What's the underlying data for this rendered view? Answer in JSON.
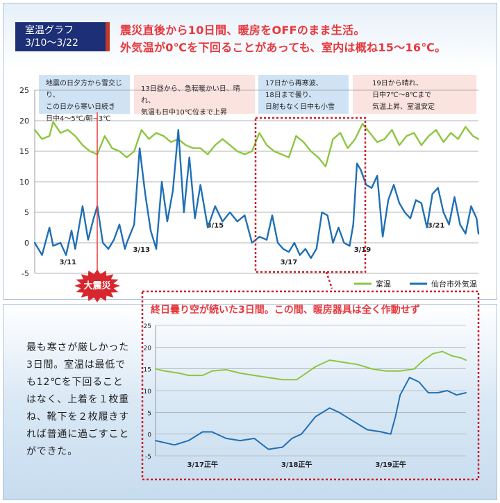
{
  "title_box": {
    "line1": "室温グラフ",
    "line2": "3/10〜3/22"
  },
  "headline": {
    "line1": "震災直後から10日間、暖房をOFFのまま生活。",
    "line2": "外気温が0℃を下回ることがあっても、室内は概ね15〜16℃。"
  },
  "annotations": [
    {
      "lines": [
        "地震の日夕方から雪交じり、",
        "この日から寒い日続き",
        "日中4〜5℃/朝−3℃"
      ],
      "style": "blue"
    },
    {
      "lines": [
        "13日昼から、急転暖かい日、晴れ、",
        "気温も日中10℃位まで上昇"
      ],
      "style": "pink"
    },
    {
      "lines": [
        "17日から再寒波、",
        "18日まで曇り、",
        "日射もなく日中も小雪"
      ],
      "style": "blue"
    },
    {
      "lines": [
        "19日から晴れ、",
        "日中7℃〜8℃まで",
        "気温上昇、室温安定"
      ],
      "style": "pink"
    }
  ],
  "earthquake_badge": "大震災",
  "callout_title": "終日曇り空が続いた3日間。この間、暖房器具は全く作動せず",
  "description": "最も寒さが厳しかった3日間。室温は最低でも12℃を下回ることはなく、上着を１枚重ね、靴下を２枚履きすれば普通に過ごすことができた。",
  "colors": {
    "indoor": "#8cc63f",
    "outdoor": "#1f6fb5",
    "accent": "#e8383d",
    "title_bg": "#1c2f77"
  },
  "chart_data": [
    {
      "type": "line",
      "yticks": [
        25,
        20,
        15,
        10,
        5,
        0,
        -5
      ],
      "ylim": [
        -5,
        25
      ],
      "xlim": [
        10.5,
        22.55
      ],
      "x_unit": "day of March (3/x)",
      "date_labels": [
        {
          "text": "3/11",
          "x": 11.4,
          "y": -3.5
        },
        {
          "text": "3/13",
          "x": 13.4,
          "y": -1.5
        },
        {
          "text": "3/15",
          "x": 15.4,
          "y": 2.5
        },
        {
          "text": "3/17",
          "x": 17.4,
          "y": -3.5
        },
        {
          "text": "3/19",
          "x": 19.4,
          "y": -1.5
        },
        {
          "text": "3/21",
          "x": 21.4,
          "y": 2.5
        }
      ],
      "series": [
        {
          "name": "室温",
          "color": "#8cc63f",
          "x": [
            10.5,
            10.7,
            10.9,
            11.0,
            11.2,
            11.4,
            11.6,
            11.8,
            12.0,
            12.2,
            12.4,
            12.6,
            12.8,
            13.0,
            13.2,
            13.4,
            13.6,
            13.8,
            14.0,
            14.2,
            14.4,
            14.6,
            14.8,
            15.0,
            15.2,
            15.4,
            15.6,
            15.8,
            16.0,
            16.2,
            16.4,
            16.6,
            16.8,
            17.0,
            17.2,
            17.4,
            17.6,
            17.8,
            18.0,
            18.2,
            18.4,
            18.6,
            18.8,
            19.0,
            19.2,
            19.4,
            19.6,
            19.8,
            20.0,
            20.2,
            20.4,
            20.6,
            20.8,
            21.0,
            21.2,
            21.4,
            21.6,
            21.8,
            22.0,
            22.2,
            22.4,
            22.55
          ],
          "y": [
            18.5,
            17,
            17.5,
            19.8,
            18,
            18.5,
            17.5,
            16,
            15,
            14.5,
            17.5,
            15.5,
            15,
            14,
            15,
            18.5,
            17,
            18,
            17.5,
            16.5,
            17,
            16,
            15.5,
            15.5,
            14.5,
            16,
            17,
            16,
            15,
            14.5,
            15,
            18,
            16,
            15,
            14.5,
            14,
            17.5,
            16.5,
            15,
            14,
            12.5,
            17,
            18,
            15.5,
            17,
            19.5,
            18,
            16.5,
            17,
            18.5,
            16,
            17.5,
            18,
            16,
            17.5,
            18.5,
            16.5,
            18,
            17,
            19,
            17.5,
            17
          ]
        },
        {
          "name": "仙台市外気温",
          "color": "#1f6fb5",
          "x": [
            10.5,
            10.7,
            10.9,
            11.0,
            11.2,
            11.35,
            11.5,
            11.6,
            11.8,
            11.95,
            12.1,
            12.2,
            12.35,
            12.5,
            12.65,
            12.8,
            12.95,
            13.0,
            13.2,
            13.35,
            13.5,
            13.65,
            13.8,
            13.95,
            14.1,
            14.25,
            14.4,
            14.55,
            14.7,
            14.85,
            15.0,
            15.2,
            15.4,
            15.6,
            15.8,
            16.0,
            16.2,
            16.4,
            16.6,
            16.8,
            16.95,
            17.1,
            17.25,
            17.4,
            17.55,
            17.7,
            17.85,
            18.0,
            18.15,
            18.3,
            18.45,
            18.6,
            18.75,
            18.9,
            19.05,
            19.15,
            19.25,
            19.35,
            19.5,
            19.65,
            19.8,
            19.95,
            20.1,
            20.25,
            20.4,
            20.55,
            20.7,
            20.85,
            21.0,
            21.15,
            21.3,
            21.45,
            21.6,
            21.75,
            21.9,
            22.05,
            22.2,
            22.35,
            22.5,
            22.55
          ],
          "y": [
            0,
            -2,
            2.5,
            -0.5,
            0,
            -2,
            2,
            -1,
            6,
            0.5,
            4,
            6,
            0,
            -1,
            0.5,
            3,
            -1,
            0,
            3,
            15.5,
            8,
            2,
            -1,
            10,
            3.5,
            8.5,
            18.5,
            5,
            14,
            4,
            9.5,
            2.5,
            6,
            3.5,
            5,
            3.5,
            4.5,
            0,
            1,
            0.5,
            4.5,
            0,
            -1,
            -1.5,
            0,
            -2,
            -1,
            -2.5,
            -1,
            5,
            4.5,
            0,
            2.5,
            0,
            -0.5,
            3,
            13,
            12,
            9.5,
            9,
            11,
            1,
            7,
            9.5,
            6.5,
            5,
            4,
            7,
            6.5,
            2.5,
            8,
            9,
            5,
            3,
            7.5,
            3,
            1.5,
            6,
            4,
            1.5
          ]
        }
      ]
    },
    {
      "type": "line",
      "yticks": [
        25,
        20,
        15,
        10,
        5,
        0,
        -5
      ],
      "ylim": [
        -5,
        25
      ],
      "xlim": [
        16.5,
        19.8
      ],
      "xtick_labels": [
        {
          "text": "3/17正午",
          "x": 17.0
        },
        {
          "text": "3/18正午",
          "x": 18.0
        },
        {
          "text": "3/19正午",
          "x": 19.0
        }
      ],
      "series": [
        {
          "name": "室温",
          "color": "#8cc63f",
          "x": [
            16.5,
            16.6,
            16.75,
            16.85,
            17.0,
            17.1,
            17.25,
            17.4,
            17.55,
            17.7,
            17.85,
            18.0,
            18.1,
            18.2,
            18.35,
            18.5,
            18.65,
            18.8,
            18.95,
            19.1,
            19.25,
            19.35,
            19.45,
            19.55,
            19.65,
            19.75,
            19.8
          ],
          "y": [
            15,
            14.5,
            14,
            13.5,
            13.5,
            14.5,
            14.8,
            14,
            13.5,
            13,
            12.5,
            12.5,
            14,
            15.5,
            17,
            16.5,
            16,
            15,
            14.5,
            14.5,
            15,
            17,
            18.5,
            19,
            18,
            17.5,
            17
          ]
        },
        {
          "name": "仙台市外気温",
          "color": "#1f6fb5",
          "x": [
            16.5,
            16.6,
            16.7,
            16.85,
            17.0,
            17.1,
            17.25,
            17.4,
            17.55,
            17.7,
            17.85,
            17.95,
            18.05,
            18.2,
            18.35,
            18.45,
            18.6,
            18.75,
            18.9,
            19.0,
            19.05,
            19.1,
            19.2,
            19.3,
            19.4,
            19.5,
            19.6,
            19.7,
            19.8
          ],
          "y": [
            -1.5,
            -2,
            -2.5,
            -1.5,
            0.5,
            0.5,
            -1,
            -1.5,
            -1,
            -3.5,
            -3,
            -1,
            0,
            4,
            6,
            5,
            3,
            1,
            0.5,
            0,
            4,
            9,
            13,
            12,
            9.5,
            9.5,
            10,
            9,
            9.5
          ]
        }
      ]
    }
  ],
  "legend": {
    "indoor": "室温",
    "outdoor": "仙台市外気温"
  }
}
